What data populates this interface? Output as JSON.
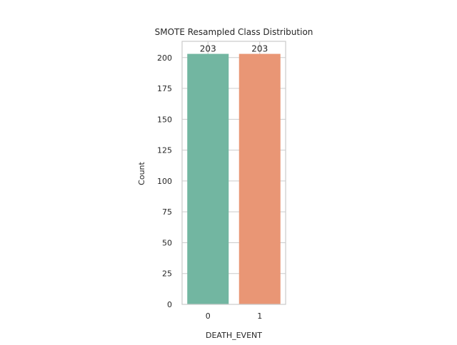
{
  "chart_data": {
    "type": "bar",
    "title": "SMOTE Resampled Class Distribution",
    "xlabel": "DEATH_EVENT",
    "ylabel": "Count",
    "categories": [
      "0",
      "1"
    ],
    "values": [
      203,
      203
    ],
    "data_labels": [
      "203",
      "203"
    ],
    "ylim": [
      0,
      213.15
    ],
    "yticks": [
      0,
      25,
      50,
      75,
      100,
      125,
      150,
      175,
      200
    ],
    "ytick_labels": [
      "0",
      "25",
      "50",
      "75",
      "100",
      "125",
      "150",
      "175",
      "200"
    ],
    "grid": true,
    "colors": [
      "#72b6a1",
      "#e99675"
    ],
    "grid_color": "#cccccc",
    "axis_color": "#cccccc"
  }
}
